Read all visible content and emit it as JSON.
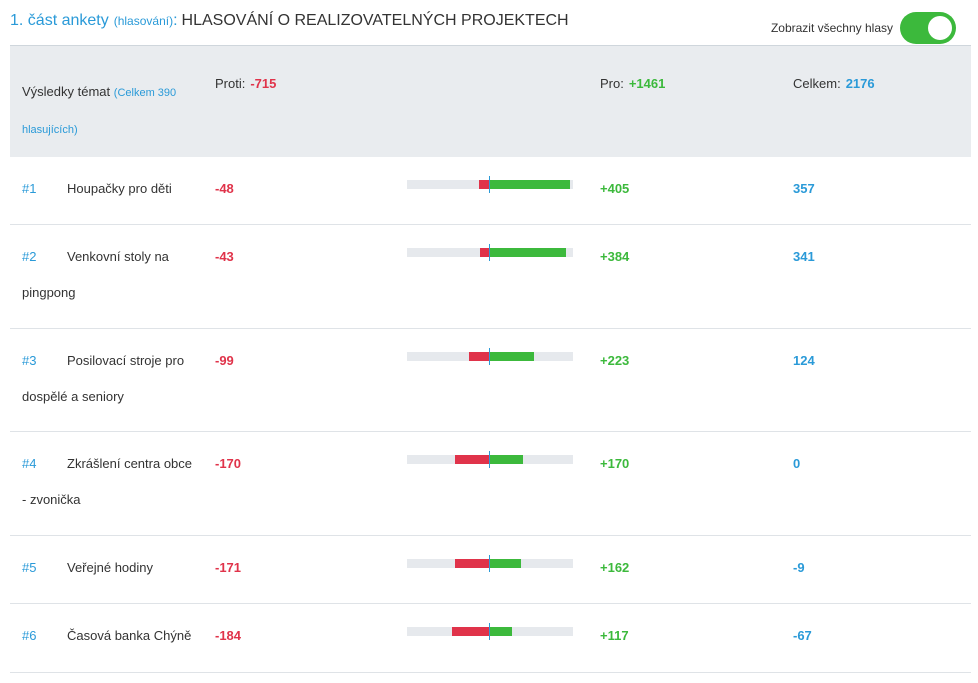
{
  "section": {
    "part_label": "1. část ankety",
    "part_sub": "(hlasování)",
    "colon": ":",
    "title": "HLASOVÁNÍ O REALIZOVATELNÝCH PROJEKTECH"
  },
  "toggle": {
    "label": "Zobrazit všechny hlasy",
    "on": true
  },
  "header": {
    "topics_label": "Výsledky témat",
    "topics_total": "(Celkem 390 hlasujících)",
    "against_label": "Proti:",
    "against_value": "-715",
    "for_label": "Pro:",
    "for_value": "+1461",
    "total_label": "Celkem:",
    "total_value": "2176"
  },
  "scale_max": 410,
  "colors": {
    "accent": "#2a9ad8",
    "against": "#e0334a",
    "for": "#3cb93c"
  },
  "rows": [
    {
      "rank": "#1",
      "name": "Houpačky pro děti",
      "against": "-48",
      "for": "+405",
      "total": "357"
    },
    {
      "rank": "#2",
      "name": "Venkovní stoly na pingpong",
      "against": "-43",
      "for": "+384",
      "total": "341"
    },
    {
      "rank": "#3",
      "name": "Posilovací stroje pro dospělé a seniory",
      "against": "-99",
      "for": "+223",
      "total": "124"
    },
    {
      "rank": "#4",
      "name": "Zkrášlení centra obce - zvonička",
      "against": "-170",
      "for": "+170",
      "total": "0"
    },
    {
      "rank": "#5",
      "name": "Veřejné hodiny",
      "against": "-171",
      "for": "+162",
      "total": "-9"
    },
    {
      "rank": "#6",
      "name": "Časová banka Chýně",
      "against": "-184",
      "for": "+117",
      "total": "-67"
    }
  ]
}
